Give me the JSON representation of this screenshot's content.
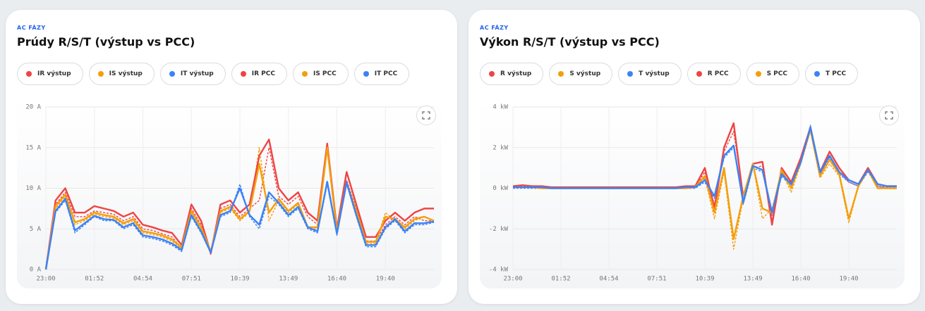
{
  "chart_data": [
    {
      "type": "line",
      "eyebrow": "AC FÁZY",
      "title": "Prúdy R/S/T (výstup vs PCC)",
      "xlim": [
        0,
        40
      ],
      "xticks": [
        {
          "value": 0,
          "label": "23:00"
        },
        {
          "value": 5,
          "label": "01:52"
        },
        {
          "value": 10,
          "label": "04:54"
        },
        {
          "value": 15,
          "label": "07:51"
        },
        {
          "value": 20,
          "label": "10:39"
        },
        {
          "value": 25,
          "label": "13:49"
        },
        {
          "value": 30,
          "label": "16:40"
        },
        {
          "value": 35,
          "label": "19:40"
        }
      ],
      "ylim": [
        0,
        20
      ],
      "yticks": [
        {
          "value": 0,
          "label": "0 A"
        },
        {
          "value": 5,
          "label": "5 A"
        },
        {
          "value": 10,
          "label": "10 A"
        },
        {
          "value": 15,
          "label": "15 A"
        },
        {
          "value": 20,
          "label": "20 A"
        }
      ],
      "grid": true,
      "series": [
        {
          "name": "IR výstup",
          "color": "#ef4444",
          "dashed": true,
          "values": [
            0,
            8,
            9.5,
            6.5,
            6.5,
            7.2,
            7,
            6.8,
            6,
            6.5,
            5,
            4.8,
            4.4,
            4,
            2.6,
            7.5,
            5.5,
            1.8,
            7.5,
            8,
            6.5,
            7.5,
            8.5,
            15,
            9,
            8,
            9,
            6.5,
            5.5,
            15,
            4.8,
            11,
            7.5,
            3.5,
            3.5,
            5.5,
            6.5,
            5.5,
            6.5,
            6,
            6
          ]
        },
        {
          "name": "IS výstup",
          "color": "#f59e0b",
          "dashed": true,
          "values": [
            0,
            7.5,
            9,
            5.5,
            6,
            6.8,
            6.5,
            6.3,
            5.5,
            6,
            4.5,
            4.3,
            4,
            3.5,
            2.5,
            7,
            5,
            2,
            7,
            7.5,
            6,
            7,
            15,
            6,
            8.5,
            7,
            8,
            5,
            5,
            15.5,
            4.5,
            10.5,
            7,
            3.2,
            3.2,
            7,
            6,
            5,
            6,
            6.5,
            6
          ]
        },
        {
          "name": "IT výstup",
          "color": "#3b82f6",
          "dashed": true,
          "values": [
            0,
            7,
            8.5,
            4.5,
            5.5,
            6.5,
            6,
            6,
            5,
            5.5,
            4,
            3.8,
            3.5,
            3,
            2.2,
            6.5,
            4.5,
            2,
            6.5,
            7,
            10.5,
            6.5,
            5,
            9,
            8,
            6.5,
            7.5,
            5,
            4.5,
            10.5,
            4.2,
            10.5,
            6.5,
            2.8,
            2.8,
            5,
            6,
            4.5,
            5.5,
            5.5,
            5.8
          ]
        },
        {
          "name": "IR PCC",
          "color": "#ef4444",
          "dashed": false,
          "values": [
            0,
            8.5,
            10,
            7,
            7,
            7.8,
            7.5,
            7.2,
            6.5,
            7,
            5.5,
            5.2,
            4.8,
            4.5,
            3,
            8,
            6,
            2,
            8,
            8.5,
            7,
            8,
            14,
            16,
            10,
            8.5,
            9.5,
            7,
            6,
            15.5,
            5,
            12,
            8,
            4,
            4,
            6,
            7,
            6,
            7,
            7.5,
            7.5
          ]
        },
        {
          "name": "IS PCC",
          "color": "#f59e0b",
          "dashed": false,
          "values": [
            0,
            7.8,
            9.2,
            5.8,
            6.2,
            7,
            6.7,
            6.5,
            5.7,
            6.2,
            4.7,
            4.5,
            4.2,
            3.7,
            2.7,
            7.2,
            5.2,
            2.2,
            7.2,
            7.7,
            6.2,
            7.2,
            13,
            7,
            8.7,
            7.2,
            8.2,
            5.2,
            5.2,
            15,
            4.7,
            10.7,
            7.2,
            3.4,
            3.4,
            6.5,
            6.2,
            5.2,
            6.2,
            6.5,
            6
          ]
        },
        {
          "name": "IT PCC",
          "color": "#3b82f6",
          "dashed": false,
          "values": [
            0,
            7.2,
            8.7,
            4.8,
            5.7,
            6.6,
            6.2,
            6.1,
            5.2,
            5.7,
            4.2,
            4,
            3.7,
            3.2,
            2.4,
            6.7,
            4.7,
            2.1,
            6.7,
            7.2,
            10,
            6.7,
            5.5,
            9.5,
            8.2,
            6.7,
            7.7,
            5.2,
            4.7,
            10.8,
            4.4,
            10.7,
            6.7,
            3,
            3,
            5.2,
            6.2,
            4.7,
            5.7,
            5.7,
            5.9
          ]
        }
      ]
    },
    {
      "type": "line",
      "eyebrow": "AC FÁZY",
      "title": "Výkon R/S/T (výstup vs PCC)",
      "xlim": [
        0,
        40
      ],
      "xticks": [
        {
          "value": 0,
          "label": "23:00"
        },
        {
          "value": 5,
          "label": "01:52"
        },
        {
          "value": 10,
          "label": "04:54"
        },
        {
          "value": 15,
          "label": "07:51"
        },
        {
          "value": 20,
          "label": "10:39"
        },
        {
          "value": 25,
          "label": "13:49"
        },
        {
          "value": 30,
          "label": "16:40"
        },
        {
          "value": 35,
          "label": "19:40"
        }
      ],
      "ylim": [
        -4,
        4
      ],
      "yticks": [
        {
          "value": -4,
          "label": "-4 kW"
        },
        {
          "value": -2,
          "label": "-2 kW"
        },
        {
          "value": 0,
          "label": "0 kW"
        },
        {
          "value": 2,
          "label": "2 kW"
        },
        {
          "value": 4,
          "label": "4 kW"
        }
      ],
      "grid": true,
      "series": [
        {
          "name": "R výstup",
          "color": "#ef4444",
          "dashed": true,
          "values": [
            0.05,
            0.1,
            0.05,
            0.05,
            0,
            0,
            0,
            0,
            0,
            0,
            0,
            0,
            0,
            0,
            0,
            0,
            0,
            0,
            0.05,
            0.05,
            0.8,
            -0.8,
            1.8,
            2.8,
            -0.3,
            1,
            1.1,
            -1.5,
            0.8,
            0.2,
            1.3,
            2.9,
            0.7,
            1.6,
            0.8,
            0.3,
            0.1,
            0.9,
            0.1,
            0.05,
            0.05
          ]
        },
        {
          "name": "S výstup",
          "color": "#f59e0b",
          "dashed": true,
          "values": [
            0,
            0.05,
            0,
            0,
            0,
            0,
            0,
            0,
            0,
            0,
            0,
            0,
            0,
            0,
            0,
            0,
            0,
            0,
            0,
            0,
            0.5,
            -1.5,
            0.8,
            -3,
            -0.5,
            1.2,
            -1.5,
            -1,
            0.8,
            -0.2,
            1.2,
            2.8,
            0.5,
            1.2,
            0.6,
            -1.7,
            0.1,
            0.9,
            0,
            0,
            0
          ]
        },
        {
          "name": "T výstup",
          "color": "#3b82f6",
          "dashed": true,
          "values": [
            0,
            0,
            0,
            0,
            0,
            0,
            0,
            0,
            0,
            0,
            0,
            0,
            0,
            0,
            0,
            0,
            0,
            0,
            0,
            0,
            0.3,
            -0.5,
            1.5,
            2,
            -0.8,
            1,
            0.8,
            -1.3,
            0.6,
            0.1,
            1.2,
            3.1,
            0.7,
            1.5,
            0.7,
            0.3,
            0.1,
            0.8,
            0.1,
            0,
            0
          ]
        },
        {
          "name": "R PCC",
          "color": "#ef4444",
          "dashed": false,
          "values": [
            0.1,
            0.15,
            0.1,
            0.1,
            0.05,
            0.05,
            0.05,
            0.05,
            0.05,
            0.05,
            0.05,
            0.05,
            0.05,
            0.05,
            0.05,
            0.05,
            0.05,
            0.05,
            0.1,
            0.1,
            1,
            -1,
            2,
            3.2,
            -0.5,
            1.2,
            1.3,
            -1.8,
            1,
            0.3,
            1.5,
            3,
            0.8,
            1.8,
            1,
            0.4,
            0.2,
            1,
            0.2,
            0.1,
            0.1
          ]
        },
        {
          "name": "S PCC",
          "color": "#f59e0b",
          "dashed": false,
          "values": [
            0.05,
            0.05,
            0.05,
            0,
            0,
            0,
            0,
            0,
            0,
            0,
            0,
            0,
            0,
            0,
            0,
            0,
            0,
            0,
            0,
            0.05,
            0.6,
            -1.2,
            1,
            -2.5,
            -0.4,
            1.2,
            -1,
            -1.2,
            0.9,
            0,
            1.3,
            2.9,
            0.6,
            1.4,
            0.7,
            -1.5,
            0.1,
            0.9,
            0,
            0,
            0
          ]
        },
        {
          "name": "T PCC",
          "color": "#3b82f6",
          "dashed": false,
          "values": [
            0.05,
            0.05,
            0.05,
            0.05,
            0,
            0,
            0,
            0,
            0,
            0,
            0,
            0,
            0,
            0,
            0,
            0,
            0,
            0,
            0.05,
            0.05,
            0.4,
            -0.4,
            1.6,
            2.1,
            -0.7,
            1.1,
            0.9,
            -1.2,
            0.7,
            0.2,
            1.3,
            3,
            0.8,
            1.6,
            0.8,
            0.4,
            0.2,
            0.9,
            0.2,
            0.1,
            0.1
          ]
        }
      ]
    }
  ]
}
